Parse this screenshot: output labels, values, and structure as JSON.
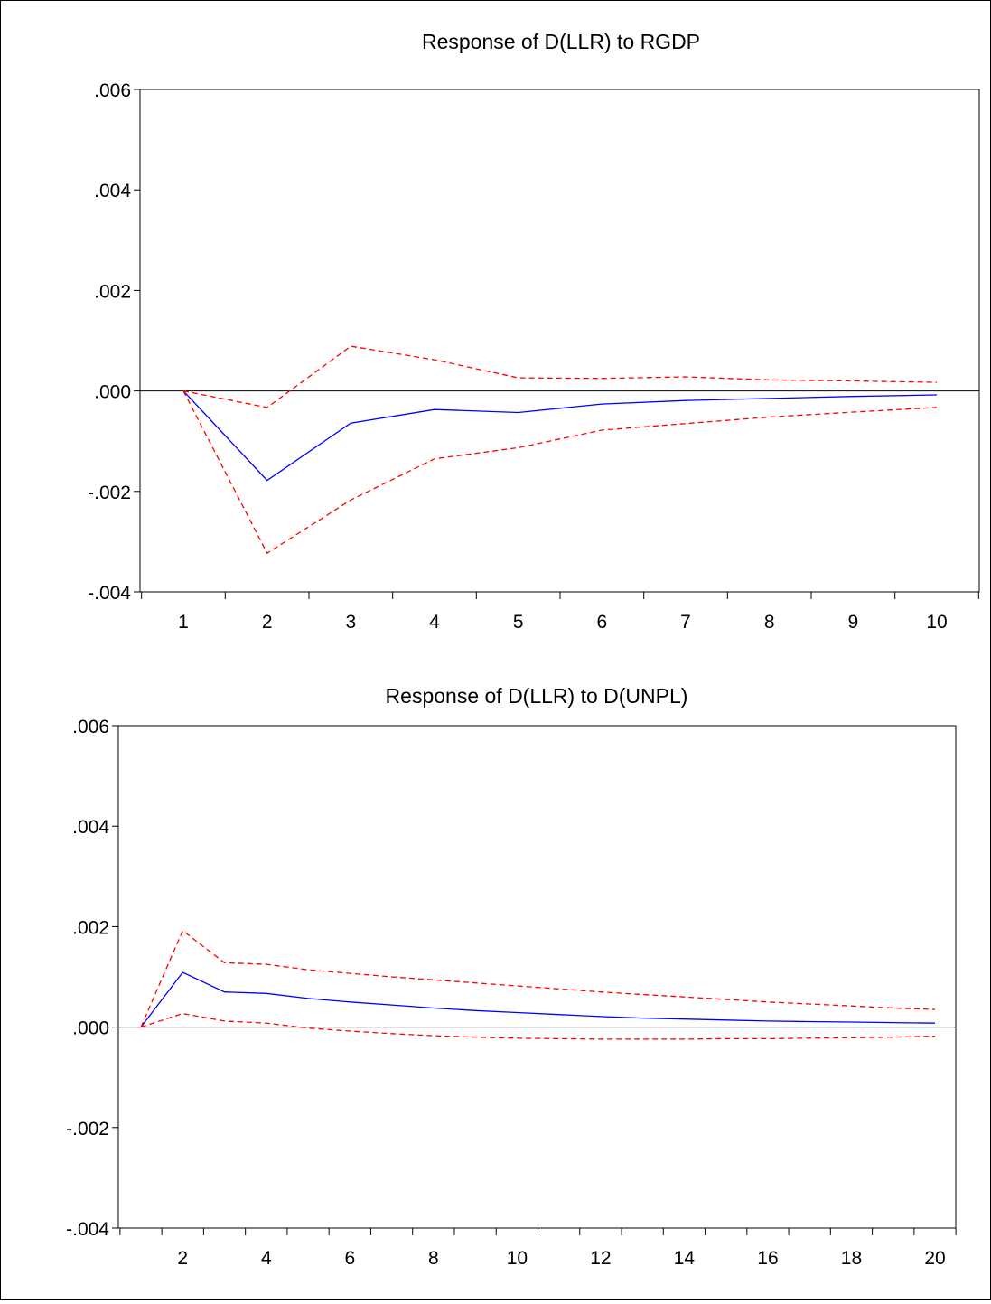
{
  "colors": {
    "response": "#0000ff",
    "band": "#ff0000",
    "axis": "#000000"
  },
  "chart_data": [
    {
      "type": "line",
      "title": "Response of D(LLR) to RGDP",
      "xlabel": "",
      "ylabel": "",
      "x": [
        1,
        2,
        3,
        4,
        5,
        6,
        7,
        8,
        9,
        10
      ],
      "ylim": [
        -0.004,
        0.006
      ],
      "yticks": [
        ".006",
        ".004",
        ".002",
        ".000",
        "-.002",
        "-.004"
      ],
      "ytick_values": [
        0.006,
        0.004,
        0.002,
        0.0,
        -0.002,
        -0.004
      ],
      "xticks": [
        "1",
        "2",
        "3",
        "4",
        "5",
        "6",
        "7",
        "8",
        "9",
        "10"
      ],
      "xtick_values": [
        1,
        2,
        3,
        4,
        5,
        6,
        7,
        8,
        9,
        10
      ],
      "zero_line": true,
      "grid": false,
      "series": [
        {
          "role": "response",
          "values": [
            0.0,
            -0.00178,
            -0.00064,
            -0.00037,
            -0.00043,
            -0.00026,
            -0.00019,
            -0.00015,
            -0.00011,
            -8e-05
          ]
        },
        {
          "role": "upper",
          "values": [
            0.0,
            -0.00033,
            0.00089,
            0.00062,
            0.00026,
            0.00025,
            0.00028,
            0.00022,
            0.0002,
            0.00017
          ]
        },
        {
          "role": "lower",
          "values": [
            0.0,
            -0.00323,
            -0.00217,
            -0.00135,
            -0.00113,
            -0.00078,
            -0.00065,
            -0.00052,
            -0.00042,
            -0.00033
          ]
        }
      ]
    },
    {
      "type": "line",
      "title": "Response of D(LLR) to D(UNPL)",
      "xlabel": "",
      "ylabel": "",
      "x": [
        1,
        2,
        3,
        4,
        5,
        6,
        7,
        8,
        9,
        10,
        11,
        12,
        13,
        14,
        15,
        16,
        17,
        18,
        19,
        20
      ],
      "ylim": [
        -0.004,
        0.006
      ],
      "yticks": [
        ".006",
        ".004",
        ".002",
        ".000",
        "-.002",
        "-.004"
      ],
      "ytick_values": [
        0.006,
        0.004,
        0.002,
        0.0,
        -0.002,
        -0.004
      ],
      "xticks": [
        "2",
        "4",
        "6",
        "8",
        "10",
        "12",
        "14",
        "16",
        "18",
        "20"
      ],
      "xtick_values": [
        2,
        4,
        6,
        8,
        10,
        12,
        14,
        16,
        18,
        20
      ],
      "zero_line": true,
      "grid": false,
      "series": [
        {
          "role": "response",
          "values": [
            0.0,
            0.00109,
            0.0007,
            0.00067,
            0.00057,
            0.0005,
            0.00044,
            0.00038,
            0.00033,
            0.00029,
            0.00025,
            0.00021,
            0.00018,
            0.00016,
            0.00014,
            0.00012,
            0.00011,
            0.0001,
            9e-05,
            8e-05
          ]
        },
        {
          "role": "upper",
          "values": [
            0.0,
            0.00192,
            0.00128,
            0.00125,
            0.00114,
            0.00107,
            0.001,
            0.00094,
            0.00088,
            0.00082,
            0.00076,
            0.0007,
            0.00065,
            0.0006,
            0.00055,
            0.0005,
            0.00046,
            0.00042,
            0.00038,
            0.00035
          ]
        },
        {
          "role": "lower",
          "values": [
            0.0,
            0.00027,
            0.00012,
            8e-05,
            -2e-05,
            -8e-05,
            -0.00013,
            -0.00017,
            -0.0002,
            -0.00022,
            -0.00023,
            -0.00024,
            -0.00024,
            -0.00024,
            -0.00023,
            -0.00023,
            -0.00022,
            -0.00021,
            -0.0002,
            -0.00018
          ]
        }
      ]
    }
  ]
}
